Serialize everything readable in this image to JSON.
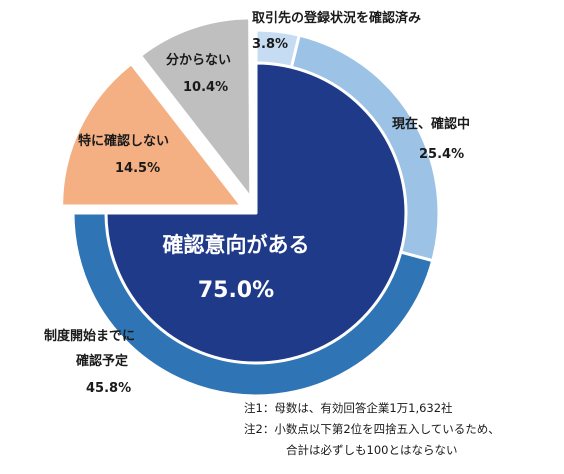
{
  "chart_data": {
    "type": "pie",
    "title": "",
    "main": {
      "label": "確認意向がある",
      "value": 75.0,
      "value_text": "75.0%",
      "color": "#203a8a"
    },
    "main_breakdown": [
      {
        "label": "取引先の登録状況を確認済み",
        "value": 3.8,
        "value_text": "3.8%",
        "color": "#c5dcf2"
      },
      {
        "label": "現在、確認中",
        "value": 25.4,
        "value_text": "25.4%",
        "color": "#9cc2e6"
      },
      {
        "label_lines": [
          "制度開始までに",
          "確認予定"
        ],
        "value": 45.8,
        "value_text": "45.8%",
        "color": "#2f75b6"
      }
    ],
    "others": [
      {
        "label": "特に確認しない",
        "value": 14.5,
        "value_text": "14.5%",
        "color": "#f4b083"
      },
      {
        "label": "分からない",
        "value": 10.4,
        "value_text": "10.4%",
        "color": "#bfbfbf"
      }
    ]
  },
  "notes": [
    "注1：母数は、有効回答企業1万1,632社",
    "注2：小数点以下第2位を四捨五入しているため、",
    "合計は必ずしも100とはならない"
  ]
}
